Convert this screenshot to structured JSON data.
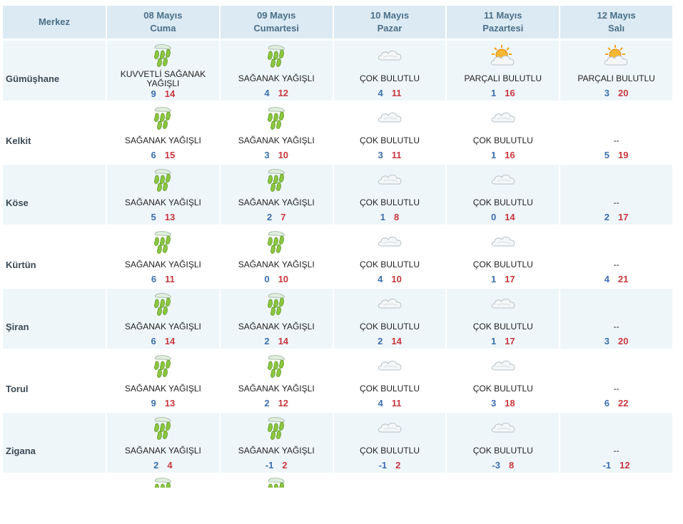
{
  "header": {
    "center_label": "Merkez",
    "days": [
      {
        "date": "08 Mayıs",
        "weekday": "Cuma"
      },
      {
        "date": "09 Mayıs",
        "weekday": "Cumartesi"
      },
      {
        "date": "10 Mayıs",
        "weekday": "Pazar"
      },
      {
        "date": "11 Mayıs",
        "weekday": "Pazartesi"
      },
      {
        "date": "12 Mayıs",
        "weekday": "Salı"
      }
    ]
  },
  "rows": [
    {
      "city": "Gümüşhane",
      "days": [
        {
          "icon": "heavy-rain-icon",
          "condition": "KUVVETLİ SAĞANAK YAĞIŞLI",
          "min": "9",
          "max": "14"
        },
        {
          "icon": "rain-icon",
          "condition": "SAĞANAK YAĞIŞLI",
          "min": "4",
          "max": "12"
        },
        {
          "icon": "cloudy-icon",
          "condition": "ÇOK BULUTLU",
          "min": "4",
          "max": "11"
        },
        {
          "icon": "partly-cloudy-icon",
          "condition": "PARÇALI BULUTLU",
          "min": "1",
          "max": "16"
        },
        {
          "icon": "partly-cloudy-icon",
          "condition": "PARÇALI BULUTLU",
          "min": "3",
          "max": "20"
        }
      ]
    },
    {
      "city": "Kelkit",
      "days": [
        {
          "icon": "rain-icon",
          "condition": "SAĞANAK YAĞIŞLI",
          "min": "6",
          "max": "15"
        },
        {
          "icon": "rain-icon",
          "condition": "SAĞANAK YAĞIŞLI",
          "min": "3",
          "max": "10"
        },
        {
          "icon": "cloudy-icon",
          "condition": "ÇOK BULUTLU",
          "min": "3",
          "max": "11"
        },
        {
          "icon": "cloudy-icon",
          "condition": "ÇOK BULUTLU",
          "min": "1",
          "max": "16"
        },
        {
          "icon": "",
          "condition": "--",
          "min": "5",
          "max": "19"
        }
      ]
    },
    {
      "city": "Köse",
      "days": [
        {
          "icon": "rain-icon",
          "condition": "SAĞANAK YAĞIŞLI",
          "min": "5",
          "max": "13"
        },
        {
          "icon": "rain-icon",
          "condition": "SAĞANAK YAĞIŞLI",
          "min": "2",
          "max": "7"
        },
        {
          "icon": "cloudy-icon",
          "condition": "ÇOK BULUTLU",
          "min": "1",
          "max": "8"
        },
        {
          "icon": "cloudy-icon",
          "condition": "ÇOK BULUTLU",
          "min": "0",
          "max": "14"
        },
        {
          "icon": "",
          "condition": "--",
          "min": "2",
          "max": "17"
        }
      ]
    },
    {
      "city": "Kürtün",
      "days": [
        {
          "icon": "rain-icon",
          "condition": "SAĞANAK YAĞIŞLI",
          "min": "6",
          "max": "11"
        },
        {
          "icon": "rain-icon",
          "condition": "SAĞANAK YAĞIŞLI",
          "min": "0",
          "max": "10"
        },
        {
          "icon": "cloudy-icon",
          "condition": "ÇOK BULUTLU",
          "min": "4",
          "max": "10"
        },
        {
          "icon": "cloudy-icon",
          "condition": "ÇOK BULUTLU",
          "min": "1",
          "max": "17"
        },
        {
          "icon": "",
          "condition": "--",
          "min": "4",
          "max": "21"
        }
      ]
    },
    {
      "city": "Şiran",
      "days": [
        {
          "icon": "rain-icon",
          "condition": "SAĞANAK YAĞIŞLI",
          "min": "6",
          "max": "14"
        },
        {
          "icon": "rain-icon",
          "condition": "SAĞANAK YAĞIŞLI",
          "min": "2",
          "max": "14"
        },
        {
          "icon": "cloudy-icon",
          "condition": "ÇOK BULUTLU",
          "min": "2",
          "max": "14"
        },
        {
          "icon": "cloudy-icon",
          "condition": "ÇOK BULUTLU",
          "min": "1",
          "max": "17"
        },
        {
          "icon": "",
          "condition": "--",
          "min": "3",
          "max": "20"
        }
      ]
    },
    {
      "city": "Torul",
      "days": [
        {
          "icon": "rain-icon",
          "condition": "SAĞANAK YAĞIŞLI",
          "min": "9",
          "max": "13"
        },
        {
          "icon": "rain-icon",
          "condition": "SAĞANAK YAĞIŞLI",
          "min": "2",
          "max": "12"
        },
        {
          "icon": "cloudy-icon",
          "condition": "ÇOK BULUTLU",
          "min": "4",
          "max": "11"
        },
        {
          "icon": "cloudy-icon",
          "condition": "ÇOK BULUTLU",
          "min": "3",
          "max": "18"
        },
        {
          "icon": "",
          "condition": "--",
          "min": "6",
          "max": "22"
        }
      ]
    },
    {
      "city": "Zigana",
      "days": [
        {
          "icon": "rain-icon",
          "condition": "SAĞANAK YAĞIŞLI",
          "min": "2",
          "max": "4"
        },
        {
          "icon": "rain-icon",
          "condition": "SAĞANAK YAĞIŞLI",
          "min": "-1",
          "max": "2"
        },
        {
          "icon": "cloudy-icon",
          "condition": "ÇOK BULUTLU",
          "min": "-1",
          "max": "2"
        },
        {
          "icon": "cloudy-icon",
          "condition": "ÇOK BULUTLU",
          "min": "-3",
          "max": "8"
        },
        {
          "icon": "",
          "condition": "--",
          "min": "-1",
          "max": "12"
        }
      ]
    }
  ]
}
